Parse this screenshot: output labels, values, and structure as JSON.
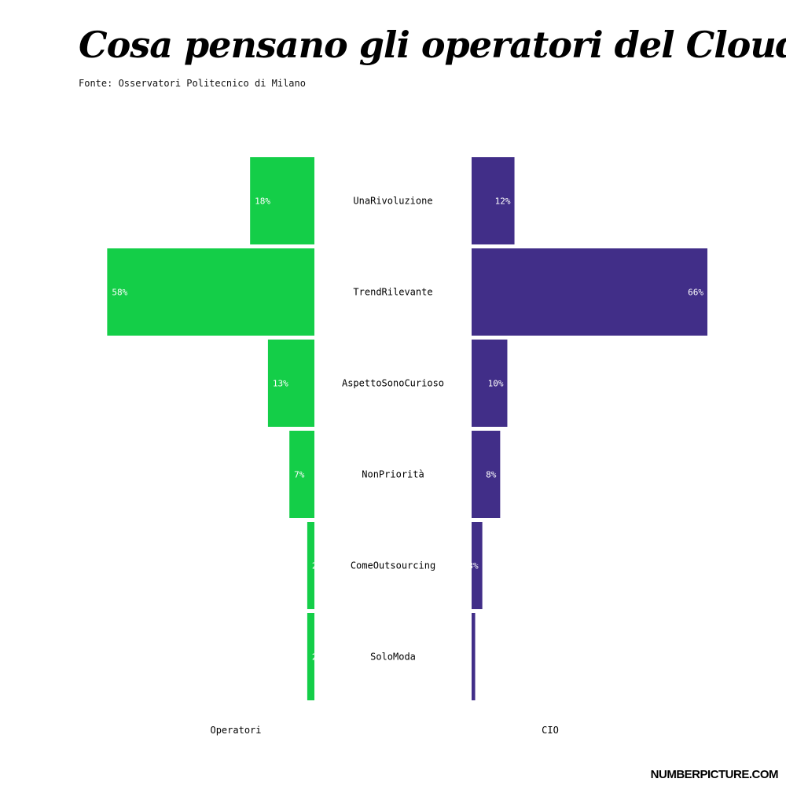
{
  "header": {
    "title": "Cosa pensano gli operatori del Cloud?",
    "subtitle": "Fonte: Osservatori Politecnico di Milano"
  },
  "footer": {
    "brand": "NUMBERPICTURE.COM"
  },
  "colors": {
    "left_series": "#14ce48",
    "right_series": "#412e88"
  },
  "chart_data": {
    "type": "bar",
    "orientation": "horizontal-butterfly",
    "categories": [
      "UnaRivoluzione",
      "TrendRilevante",
      "AspettoSonoCurioso",
      "NonPriorità",
      "ComeOutsourcing",
      "SoloModa"
    ],
    "series": [
      {
        "name": "Operatori",
        "values": [
          18,
          58,
          13,
          7,
          2,
          2
        ],
        "labels": [
          "18%",
          "58%",
          "13%",
          "7%",
          "2%",
          "2%"
        ]
      },
      {
        "name": "CIO",
        "values": [
          12,
          66,
          10,
          8,
          3,
          1
        ],
        "labels": [
          "12%",
          "66%",
          "10%",
          "8%",
          "3%",
          "1%"
        ]
      }
    ],
    "xlabel": "",
    "ylabel": ""
  }
}
